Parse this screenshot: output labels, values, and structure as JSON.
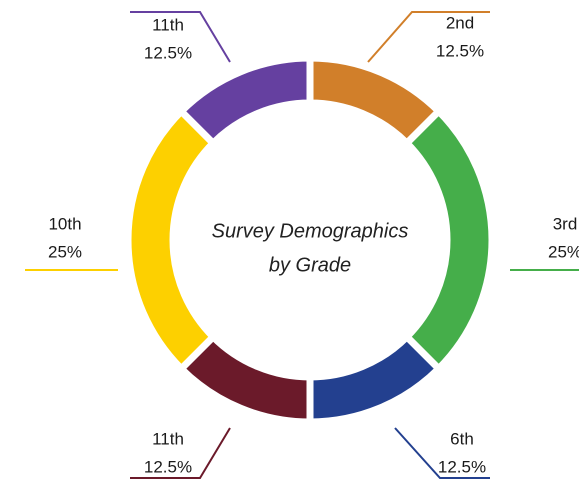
{
  "chart_data": {
    "type": "pie",
    "title": [
      "Survey Demographics",
      "by Grade"
    ],
    "categories": [
      "2nd",
      "3rd",
      "6th",
      "11th",
      "10th",
      "11th"
    ],
    "values": [
      12.5,
      25,
      12.5,
      12.5,
      25,
      12.5
    ],
    "value_labels": [
      "12.5%",
      "25%",
      "12.5%",
      "12.5%",
      "25%",
      "12.5%"
    ],
    "colors": [
      "#d17f2a",
      "#45ae4a",
      "#23408f",
      "#6b1a2a",
      "#fdd000",
      "#6540a0"
    ]
  }
}
